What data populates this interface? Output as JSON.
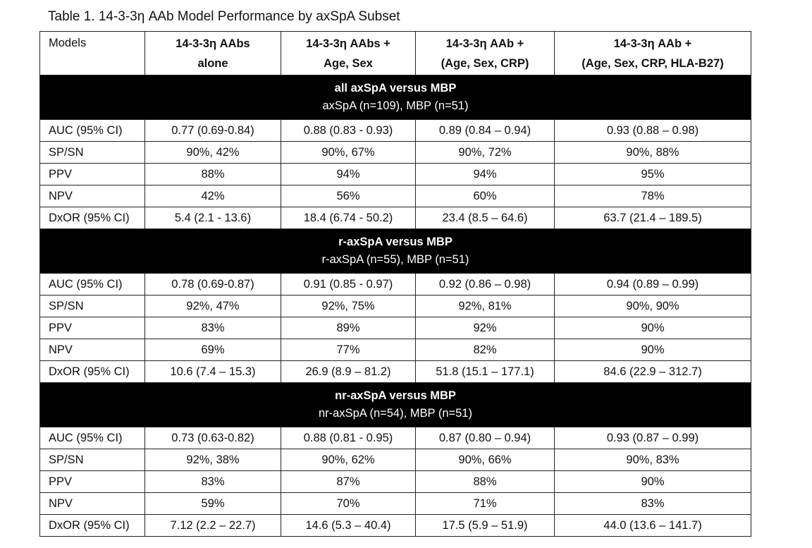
{
  "title": "Table 1. 14-3-3η AAb Model Performance by axSpA Subset",
  "table": {
    "headers": [
      [
        "Models"
      ],
      [
        "14-3-3η AAbs",
        "alone"
      ],
      [
        "14-3-3η AAbs +",
        "Age, Sex"
      ],
      [
        "14-3-3η AAb +",
        "(Age, Sex, CRP)"
      ],
      [
        "14-3-3η AAb +",
        "(Age, Sex, CRP, HLA-B27)"
      ]
    ],
    "sections": [
      {
        "heading": "all axSpA versus MBP",
        "subheading": "axSpA (n=109), MBP (n=51)",
        "rows": [
          [
            "AUC (95% CI)",
            "0.77 (0.69-0.84)",
            "0.88 (0.83 - 0.93)",
            "0.89 (0.84 – 0.94)",
            "0.93 (0.88 – 0.98)"
          ],
          [
            "SP/SN",
            "90%, 42%",
            "90%, 67%",
            "90%, 72%",
            "90%, 88%"
          ],
          [
            "PPV",
            "88%",
            "94%",
            "94%",
            "95%"
          ],
          [
            "NPV",
            "42%",
            "56%",
            "60%",
            "78%"
          ],
          [
            "DxOR (95% CI)",
            "5.4 (2.1 - 13.6)",
            "18.4 (6.74 - 50.2)",
            "23.4 (8.5 – 64.6)",
            "63.7 (21.4 – 189.5)"
          ]
        ]
      },
      {
        "heading": "r-axSpA versus MBP",
        "subheading": "r-axSpA (n=55), MBP (n=51)",
        "rows": [
          [
            "AUC (95% CI)",
            "0.78 (0.69-0.87)",
            "0.91 (0.85 - 0.97)",
            "0.92 (0.86 – 0.98)",
            "0.94 (0.89 – 0.99)"
          ],
          [
            "SP/SN",
            "92%, 47%",
            "92%, 75%",
            "92%, 81%",
            "90%, 90%"
          ],
          [
            "PPV",
            "83%",
            "89%",
            "92%",
            "90%"
          ],
          [
            "NPV",
            "69%",
            "77%",
            "82%",
            "90%"
          ],
          [
            "DxOR (95% CI)",
            "10.6 (7.4 – 15.3)",
            "26.9 (8.9 – 81.2)",
            "51.8 (15.1 – 177.1)",
            "84.6 (22.9 – 312.7)"
          ]
        ]
      },
      {
        "heading": "nr-axSpA versus MBP",
        "subheading": "nr-axSpA (n=54), MBP (n=51)",
        "rows": [
          [
            "AUC (95% CI)",
            "0.73 (0.63-0.82)",
            "0.88 (0.81 - 0.95)",
            "0.87 (0.80 – 0.94)",
            "0.93 (0.87 – 0.99)"
          ],
          [
            "SP/SN",
            "92%, 38%",
            "90%, 62%",
            "90%, 66%",
            "90%, 83%"
          ],
          [
            "PPV",
            "83%",
            "87%",
            "88%",
            "90%"
          ],
          [
            "NPV",
            "59%",
            "70%",
            "71%",
            "83%"
          ],
          [
            "DxOR (95% CI)",
            "7.12 (2.2 – 22.7)",
            "14.6 (5.3 – 40.4)",
            "17.5 (5.9 – 51.9)",
            "44.0 (13.6 – 141.7)"
          ]
        ]
      }
    ]
  }
}
